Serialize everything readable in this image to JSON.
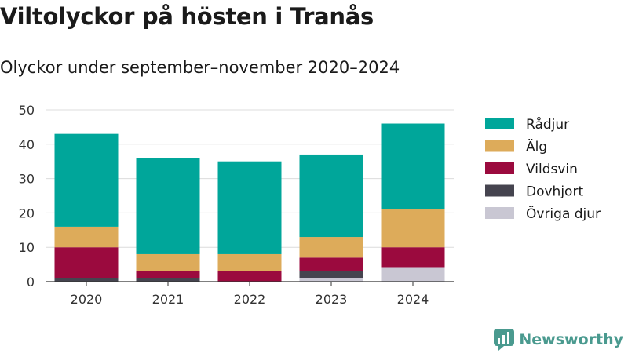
{
  "chart_data": {
    "type": "bar",
    "stacked": true,
    "title": "Viltolyckor på hösten i Tranås",
    "subtitle": "Olyckor under september–november 2020–2024",
    "categories": [
      "2020",
      "2021",
      "2022",
      "2023",
      "2024"
    ],
    "series": [
      {
        "name": "Övriga djur",
        "color": "#c9c7d3",
        "values": [
          0,
          0,
          0,
          1,
          4
        ]
      },
      {
        "name": "Dovhjort",
        "color": "#45444f",
        "values": [
          1,
          1,
          0,
          2,
          0
        ]
      },
      {
        "name": "Vildsvin",
        "color": "#9b0a3e",
        "values": [
          9,
          2,
          3,
          4,
          6
        ]
      },
      {
        "name": "Älg",
        "color": "#ddab5a",
        "values": [
          6,
          5,
          5,
          6,
          11
        ]
      },
      {
        "name": "Rådjur",
        "color": "#00a69a",
        "values": [
          27,
          28,
          27,
          24,
          25
        ]
      }
    ],
    "yticks": [
      0,
      10,
      20,
      30,
      40,
      50
    ],
    "ylim": [
      0,
      50
    ],
    "grid": true,
    "legend_position": "right"
  },
  "brand": {
    "name": "Newsworthy",
    "icon": "newsworthy-logo-icon",
    "color": "#4a9a8f"
  }
}
